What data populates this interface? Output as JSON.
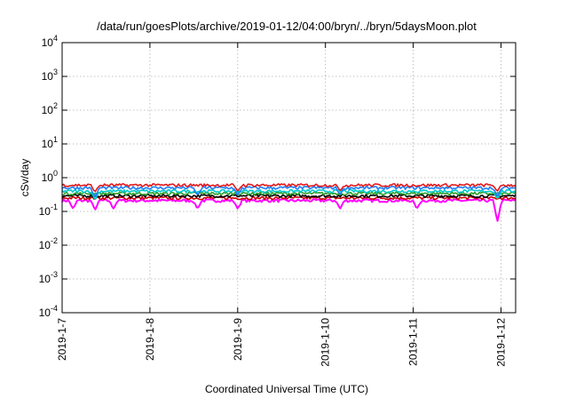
{
  "chart_data": {
    "type": "line",
    "title": "/data/run/goesPlots/archive/2019-01-12/04:00/bryn/../bryn/5daysMoon.plot",
    "xlabel": "Coordinated Universal Time (UTC)",
    "ylabel": "cSv/day",
    "yscale": "log",
    "ylim": [
      0.0001,
      10000
    ],
    "y_ticks": [
      {
        "base": "10",
        "exp": "-4",
        "value": 0.0001
      },
      {
        "base": "10",
        "exp": "-3",
        "value": 0.001
      },
      {
        "base": "10",
        "exp": "-2",
        "value": 0.01
      },
      {
        "base": "10",
        "exp": "-1",
        "value": 0.1
      },
      {
        "base": "10",
        "exp": "0",
        "value": 1
      },
      {
        "base": "10",
        "exp": "1",
        "value": 10
      },
      {
        "base": "10",
        "exp": "2",
        "value": 100
      },
      {
        "base": "10",
        "exp": "3",
        "value": 1000
      },
      {
        "base": "10",
        "exp": "4",
        "value": 10000
      }
    ],
    "xlim": [
      "2019-01-07T00:00",
      "2019-01-12T04:00"
    ],
    "x_ticks": [
      {
        "label": "2019-1-7",
        "value": "2019-01-07T00:00"
      },
      {
        "label": "2019-1-8",
        "value": "2019-01-08T00:00"
      },
      {
        "label": "2019-1-9",
        "value": "2019-01-09T00:00"
      },
      {
        "label": "2019-1-10",
        "value": "2019-01-10T00:00"
      },
      {
        "label": "2019-1-11",
        "value": "2019-01-11T00:00"
      },
      {
        "label": "2019-1-12",
        "value": "2019-01-12T00:00"
      }
    ],
    "grid": true,
    "series": [
      {
        "color": "#e41a1c",
        "base": 0.6,
        "dips": [
          {
            "at": "2019-01-07T09:00",
            "value": 0.38
          },
          {
            "at": "2019-01-09T00:00",
            "value": 0.4
          },
          {
            "at": "2019-01-10T04:00",
            "value": 0.42
          },
          {
            "at": "2019-01-11T23:00",
            "value": 0.4
          }
        ]
      },
      {
        "color": "#1e7fff",
        "base": 0.5,
        "dips": [
          {
            "at": "2019-01-07T09:00",
            "value": 0.26
          },
          {
            "at": "2019-01-08T13:00",
            "value": 0.3
          },
          {
            "at": "2019-01-09T00:00",
            "value": 0.3
          },
          {
            "at": "2019-01-10T04:00",
            "value": 0.32
          },
          {
            "at": "2019-01-11T23:00",
            "value": 0.28
          }
        ]
      },
      {
        "color": "#00c9c9",
        "base": 0.4,
        "dips": [
          {
            "at": "2019-01-07T09:00",
            "value": 0.22
          },
          {
            "at": "2019-01-11T23:00",
            "value": 0.24
          }
        ]
      },
      {
        "color": "#2ca02c",
        "base": 0.34,
        "dips": []
      },
      {
        "color": "#000000",
        "base": 0.29,
        "dips": []
      },
      {
        "color": "#cc0000",
        "base": 0.25,
        "dips": []
      },
      {
        "color": "#ff00ff",
        "base": 0.21,
        "dips": [
          {
            "at": "2019-01-07T03:00",
            "value": 0.12
          },
          {
            "at": "2019-01-07T09:00",
            "value": 0.11
          },
          {
            "at": "2019-01-07T14:00",
            "value": 0.12
          },
          {
            "at": "2019-01-08T13:00",
            "value": 0.12
          },
          {
            "at": "2019-01-09T00:00",
            "value": 0.12
          },
          {
            "at": "2019-01-10T04:00",
            "value": 0.12
          },
          {
            "at": "2019-01-11T01:00",
            "value": 0.12
          },
          {
            "at": "2019-01-11T23:00",
            "value": 0.05
          }
        ]
      }
    ]
  }
}
